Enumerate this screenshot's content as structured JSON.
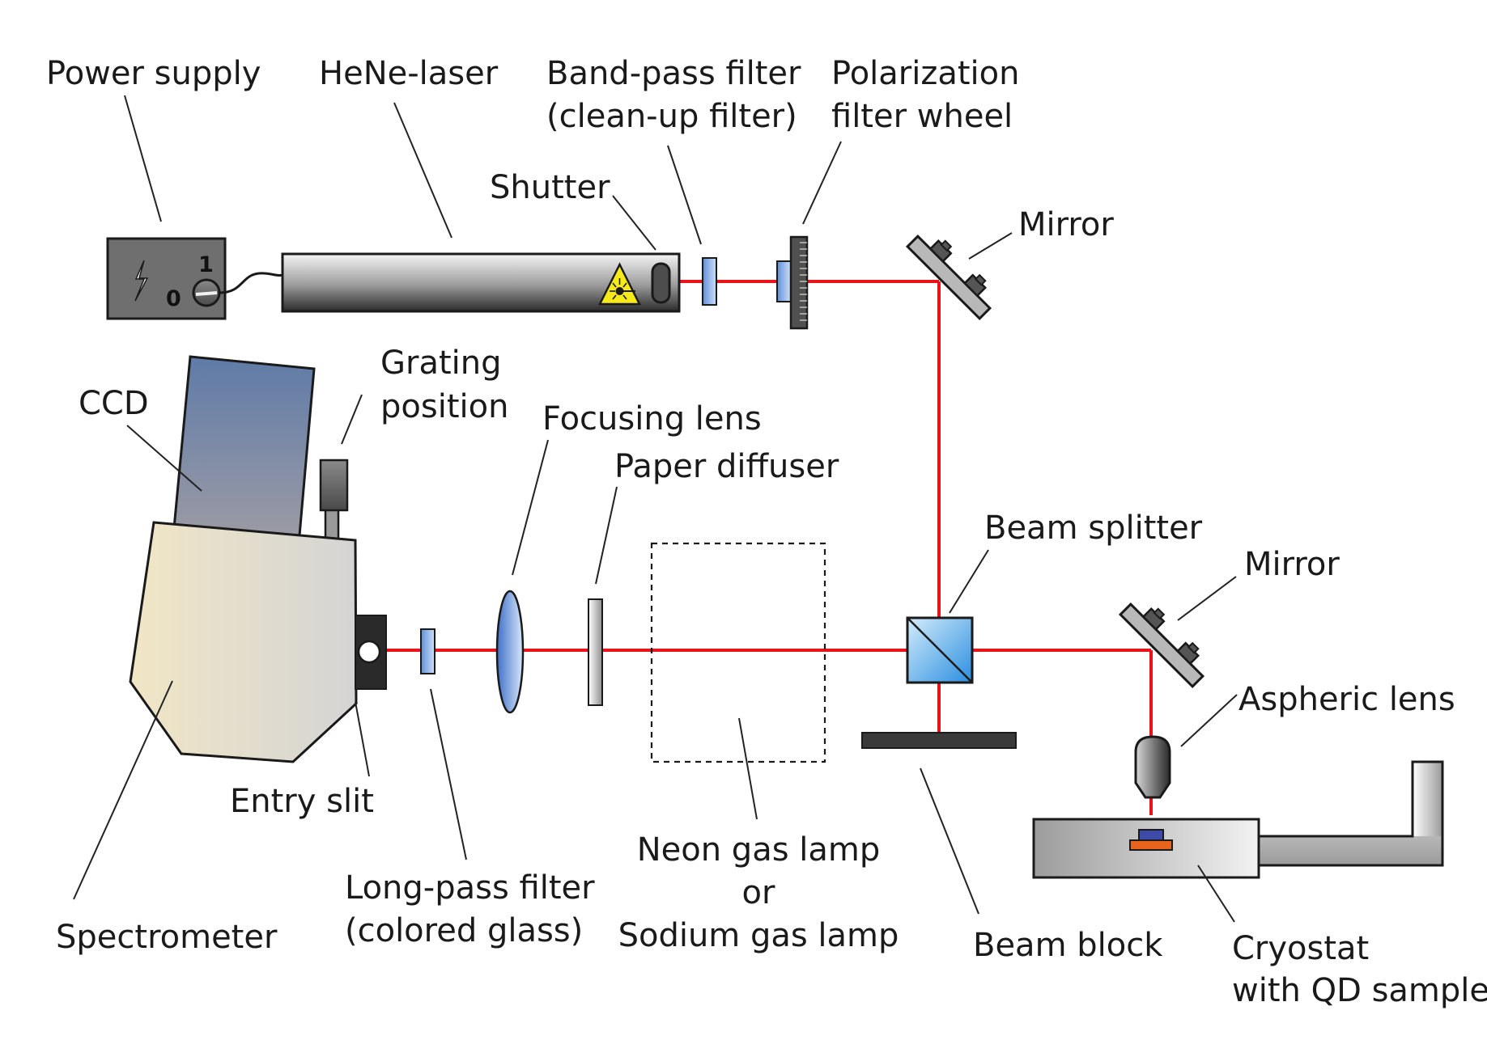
{
  "labels": {
    "power_supply": "Power supply",
    "hene_laser": "HeNe-laser",
    "bandpass_line1": "Band-pass filter",
    "bandpass_line2": "(clean-up filter)",
    "polarization_line1": "Polarization",
    "polarization_line2": "filter wheel",
    "shutter": "Shutter",
    "mirror_top": "Mirror",
    "ccd": "CCD",
    "grating_line1": "Grating",
    "grating_line2": "position",
    "focusing_lens": "Focusing lens",
    "paper_diffuser": "Paper diffuser",
    "beam_splitter": "Beam splitter",
    "mirror_right": "Mirror",
    "aspheric_lens": "Aspheric lens",
    "entry_slit": "Entry slit",
    "spectrometer": "Spectrometer",
    "longpass_line1": "Long-pass filter",
    "longpass_line2": "(colored glass)",
    "lamp_line1": "Neon gas lamp",
    "lamp_line2": "or",
    "lamp_line3": "Sodium gas lamp",
    "beam_block": "Beam block",
    "cryostat_line1": "Cryostat",
    "cryostat_line2": "with QD sample"
  },
  "power_supply_marks": {
    "on": "1",
    "off": "0"
  },
  "colors": {
    "laser_beam": "#e8131b",
    "qd_sample": "#e8641c",
    "sample_holder": "#3d4aa8"
  }
}
